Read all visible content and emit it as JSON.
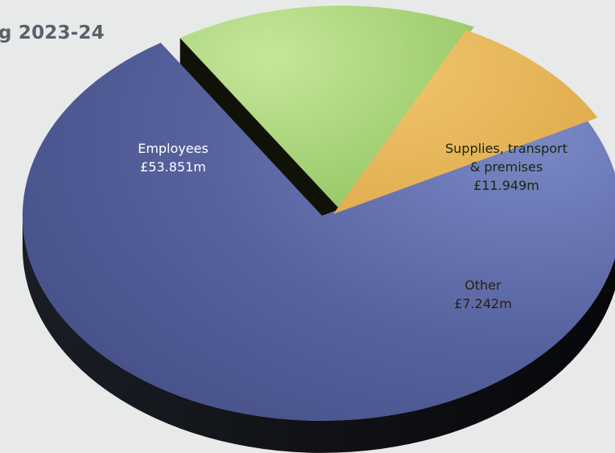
{
  "chart_data": {
    "type": "pie",
    "title": "g 2023-24",
    "slices": [
      {
        "label": "Employees",
        "value_label": "£53.851m",
        "value": 53.851,
        "color": "#56629e"
      },
      {
        "label": "Supplies, transport & premises",
        "label_lines": [
          "Supplies, transport",
          "& premises"
        ],
        "value_label": "£11.949m",
        "value": 11.949,
        "color": "#9fcd6c"
      },
      {
        "label": "Other",
        "value_label": "£7.242m",
        "value": 7.242,
        "color": "#e6b557"
      }
    ],
    "unit": "£m",
    "legend": "none",
    "grid": false
  }
}
